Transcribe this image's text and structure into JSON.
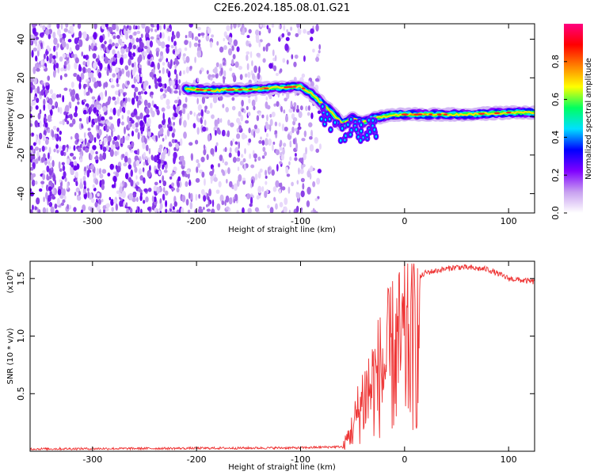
{
  "title": "C2E6.2024.185.08.01.G21",
  "chart_data": [
    {
      "type": "heatmap",
      "xlabel": "Height of straight line (km)",
      "ylabel": "Frequency (Hz)",
      "xlim": [
        -360,
        125
      ],
      "ylim": [
        -50,
        48
      ],
      "xticks": [
        -300,
        -200,
        -100,
        0,
        100
      ],
      "yticks": [
        -40,
        -20,
        0,
        20,
        40
      ],
      "colorbar": {
        "label": "Normalized spectral amplitude",
        "range": [
          0,
          1
        ],
        "ticks": [
          "0.0",
          "0.2",
          "0.4",
          "0.6",
          "0.8"
        ],
        "colors": [
          "#ffffff",
          "#c8a0f0",
          "#8000ff",
          "#0000ff",
          "#00e0ff",
          "#00ff60",
          "#ffff00",
          "#ff8000",
          "#ff0000",
          "#ff0080"
        ]
      },
      "noise": {
        "x_range": [
          -360,
          -80
        ],
        "f_range": [
          -50,
          48
        ],
        "description_level": 0.1
      },
      "ridge": [
        {
          "x": -210,
          "f": 14
        },
        {
          "x": -180,
          "f": 13.5
        },
        {
          "x": -150,
          "f": 14
        },
        {
          "x": -120,
          "f": 15
        },
        {
          "x": -100,
          "f": 15.5
        },
        {
          "x": -90,
          "f": 12
        },
        {
          "x": -80,
          "f": 7
        },
        {
          "x": -70,
          "f": 2
        },
        {
          "x": -60,
          "f": -4
        },
        {
          "x": -50,
          "f": -1
        },
        {
          "x": -40,
          "f": -3
        },
        {
          "x": -30,
          "f": -1
        },
        {
          "x": -10,
          "f": 1
        },
        {
          "x": 20,
          "f": 1
        },
        {
          "x": 60,
          "f": 1
        },
        {
          "x": 100,
          "f": 2
        },
        {
          "x": 125,
          "f": 2
        }
      ]
    },
    {
      "type": "line",
      "xlabel": "Height of straight line (km)",
      "ylabel": "SNR (10 * v/v)",
      "multiplier": "(x10",
      "multiplier_exp": "4",
      "multiplier_close": ")",
      "xlim": [
        -360,
        125
      ],
      "ylim": [
        0,
        1.65
      ],
      "xticks": [
        -300,
        -200,
        -100,
        0,
        100
      ],
      "yticks": [
        "0.5",
        "1.0",
        "1.5"
      ],
      "color": "#ee3333",
      "series": [
        {
          "envelope": [
            {
              "x": -360,
              "y": 0.02
            },
            {
              "x": -100,
              "y": 0.03
            },
            {
              "x": -60,
              "y": 0.04
            },
            {
              "x": -50,
              "y": 0.3
            },
            {
              "x": -40,
              "y": 0.7
            },
            {
              "x": -30,
              "y": 0.9
            },
            {
              "x": -20,
              "y": 1.1
            },
            {
              "x": -10,
              "y": 1.3
            },
            {
              "x": 0,
              "y": 1.4
            },
            {
              "x": 20,
              "y": 1.55
            },
            {
              "x": 50,
              "y": 1.6
            },
            {
              "x": 80,
              "y": 1.58
            },
            {
              "x": 100,
              "y": 1.5
            },
            {
              "x": 125,
              "y": 1.47
            }
          ]
        }
      ]
    }
  ]
}
